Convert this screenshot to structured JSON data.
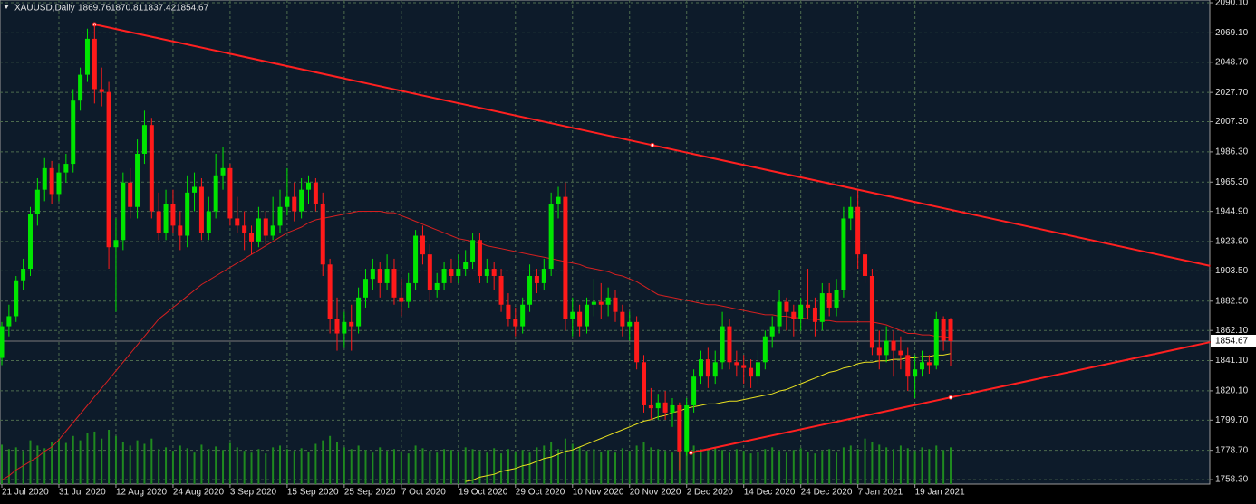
{
  "chart_data": {
    "type": "candlestick",
    "symbol": "XAUUSD,Daily",
    "up_color": "#00e600",
    "down_color": "#ff1a1a",
    "volume_color": "#1f8a1f",
    "grid": true,
    "ylim": [
      1755.2,
      2092.0
    ],
    "yticks": [
      {
        "value": 2090.1,
        "label": "2090.10"
      },
      {
        "value": 2069.1,
        "label": "2069.10"
      },
      {
        "value": 2048.7,
        "label": "2048.70"
      },
      {
        "value": 2027.7,
        "label": "2027.70"
      },
      {
        "value": 2007.3,
        "label": "2007.30"
      },
      {
        "value": 1986.3,
        "label": "1986.30"
      },
      {
        "value": 1965.3,
        "label": "1965.30"
      },
      {
        "value": 1944.9,
        "label": "1944.90"
      },
      {
        "value": 1923.9,
        "label": "1923.90"
      },
      {
        "value": 1903.5,
        "label": "1903.50"
      },
      {
        "value": 1882.5,
        "label": "1882.50"
      },
      {
        "value": 1862.1,
        "label": "1862.10"
      },
      {
        "value": 1841.1,
        "label": "1841.10"
      },
      {
        "value": 1820.1,
        "label": "1820.10"
      },
      {
        "value": 1799.7,
        "label": "1799.70"
      },
      {
        "value": 1778.7,
        "label": "1778.70"
      },
      {
        "value": 1758.3,
        "label": "1758.30"
      }
    ],
    "categories": [
      "21 Jul 2020",
      null,
      null,
      null,
      null,
      null,
      null,
      null,
      "31 Jul 2020",
      null,
      null,
      null,
      null,
      null,
      null,
      null,
      "12 Aug 2020",
      null,
      null,
      null,
      null,
      null,
      null,
      null,
      "24 Aug 2020",
      null,
      null,
      null,
      null,
      null,
      null,
      null,
      "3 Sep 2020",
      null,
      null,
      null,
      null,
      null,
      null,
      null,
      "15 Sep 2020",
      null,
      null,
      null,
      null,
      null,
      null,
      null,
      "25 Sep 2020",
      null,
      null,
      null,
      null,
      null,
      null,
      null,
      "7 Oct 2020",
      null,
      null,
      null,
      null,
      null,
      null,
      null,
      "19 Oct 2020",
      null,
      null,
      null,
      null,
      null,
      null,
      null,
      "29 Oct 2020",
      null,
      null,
      null,
      null,
      null,
      null,
      null,
      "10 Nov 2020",
      null,
      null,
      null,
      null,
      null,
      null,
      null,
      "20 Nov 2020",
      null,
      null,
      null,
      null,
      null,
      null,
      null,
      "2 Dec 2020",
      null,
      null,
      null,
      null,
      null,
      null,
      null,
      "14 Dec 2020",
      null,
      null,
      null,
      null,
      null,
      null,
      null,
      "24 Dec 2020",
      null,
      null,
      null,
      null,
      null,
      null,
      null,
      "7 Jan 2021",
      null,
      null,
      null,
      null,
      null,
      null,
      null,
      "19 Jan 2021",
      null,
      null,
      null,
      null,
      null
    ],
    "candles": [
      [
        1843,
        1868,
        1838,
        1865
      ],
      [
        1865,
        1880,
        1858,
        1872
      ],
      [
        1872,
        1900,
        1868,
        1897
      ],
      [
        1897,
        1912,
        1890,
        1905
      ],
      [
        1905,
        1948,
        1900,
        1943
      ],
      [
        1943,
        1968,
        1935,
        1960
      ],
      [
        1960,
        1982,
        1952,
        1975
      ],
      [
        1975,
        1980,
        1950,
        1957
      ],
      [
        1957,
        1978,
        1952,
        1972
      ],
      [
        1972,
        1985,
        1965,
        1978
      ],
      [
        1978,
        2030,
        1972,
        2022
      ],
      [
        2022,
        2045,
        2015,
        2040
      ],
      [
        2040,
        2072,
        2035,
        2065
      ],
      [
        2065,
        2075,
        2020,
        2030
      ],
      [
        2030,
        2045,
        2018,
        2028
      ],
      [
        2028,
        2035,
        1905,
        1920
      ],
      [
        1920,
        1940,
        1875,
        1925
      ],
      [
        1925,
        1972,
        1918,
        1965
      ],
      [
        1965,
        1975,
        1940,
        1948
      ],
      [
        1948,
        1995,
        1940,
        1985
      ],
      [
        1985,
        2015,
        1978,
        2005
      ],
      [
        2005,
        2010,
        1940,
        1945
      ],
      [
        1945,
        1958,
        1925,
        1930
      ],
      [
        1930,
        1960,
        1925,
        1950
      ],
      [
        1950,
        1960,
        1930,
        1935
      ],
      [
        1935,
        1945,
        1918,
        1928
      ],
      [
        1928,
        1970,
        1920,
        1958
      ],
      [
        1958,
        1972,
        1945,
        1962
      ],
      [
        1962,
        1968,
        1925,
        1930
      ],
      [
        1930,
        1955,
        1925,
        1945
      ],
      [
        1945,
        1985,
        1940,
        1970
      ],
      [
        1970,
        1990,
        1960,
        1975
      ],
      [
        1975,
        1978,
        1935,
        1940
      ],
      [
        1940,
        1955,
        1930,
        1935
      ],
      [
        1935,
        1945,
        1918,
        1930
      ],
      [
        1930,
        1935,
        1915,
        1924
      ],
      [
        1924,
        1948,
        1920,
        1940
      ],
      [
        1940,
        1945,
        1922,
        1928
      ],
      [
        1928,
        1955,
        1925,
        1935
      ],
      [
        1935,
        1960,
        1930,
        1948
      ],
      [
        1948,
        1975,
        1942,
        1955
      ],
      [
        1955,
        1965,
        1938,
        1945
      ],
      [
        1945,
        1968,
        1940,
        1960
      ],
      [
        1960,
        1970,
        1950,
        1965
      ],
      [
        1965,
        1968,
        1945,
        1950
      ],
      [
        1950,
        1958,
        1900,
        1908
      ],
      [
        1908,
        1912,
        1860,
        1870
      ],
      [
        1870,
        1885,
        1848,
        1860
      ],
      [
        1860,
        1875,
        1850,
        1868
      ],
      [
        1868,
        1880,
        1848,
        1865
      ],
      [
        1865,
        1892,
        1860,
        1885
      ],
      [
        1885,
        1905,
        1878,
        1898
      ],
      [
        1898,
        1912,
        1890,
        1905
      ],
      [
        1905,
        1910,
        1885,
        1895
      ],
      [
        1895,
        1915,
        1890,
        1905
      ],
      [
        1905,
        1912,
        1880,
        1885
      ],
      [
        1885,
        1898,
        1872,
        1882
      ],
      [
        1882,
        1902,
        1878,
        1895
      ],
      [
        1895,
        1932,
        1890,
        1928
      ],
      [
        1928,
        1935,
        1908,
        1915
      ],
      [
        1915,
        1922,
        1882,
        1890
      ],
      [
        1890,
        1902,
        1885,
        1895
      ],
      [
        1895,
        1910,
        1890,
        1905
      ],
      [
        1905,
        1912,
        1895,
        1900
      ],
      [
        1900,
        1915,
        1895,
        1905
      ],
      [
        1905,
        1918,
        1900,
        1910
      ],
      [
        1910,
        1930,
        1905,
        1925
      ],
      [
        1925,
        1930,
        1895,
        1900
      ],
      [
        1900,
        1912,
        1895,
        1905
      ],
      [
        1905,
        1910,
        1890,
        1900
      ],
      [
        1900,
        1905,
        1875,
        1880
      ],
      [
        1880,
        1888,
        1865,
        1870
      ],
      [
        1870,
        1878,
        1858,
        1865
      ],
      [
        1865,
        1885,
        1860,
        1880
      ],
      [
        1880,
        1908,
        1875,
        1900
      ],
      [
        1900,
        1905,
        1888,
        1895
      ],
      [
        1895,
        1912,
        1890,
        1905
      ],
      [
        1905,
        1958,
        1900,
        1950
      ],
      [
        1950,
        1962,
        1940,
        1955
      ],
      [
        1955,
        1965,
        1862,
        1870
      ],
      [
        1870,
        1885,
        1858,
        1875
      ],
      [
        1875,
        1880,
        1858,
        1865
      ],
      [
        1865,
        1885,
        1860,
        1880
      ],
      [
        1880,
        1898,
        1872,
        1882
      ],
      [
        1882,
        1895,
        1870,
        1880
      ],
      [
        1880,
        1892,
        1872,
        1885
      ],
      [
        1885,
        1890,
        1868,
        1875
      ],
      [
        1875,
        1880,
        1858,
        1865
      ],
      [
        1865,
        1875,
        1855,
        1868
      ],
      [
        1868,
        1872,
        1835,
        1840
      ],
      [
        1840,
        1845,
        1805,
        1810
      ],
      [
        1810,
        1822,
        1800,
        1808
      ],
      [
        1808,
        1818,
        1800,
        1812
      ],
      [
        1812,
        1820,
        1800,
        1805
      ],
      [
        1805,
        1815,
        1795,
        1810
      ],
      [
        1810,
        1812,
        1765,
        1778
      ],
      [
        1778,
        1815,
        1775,
        1810
      ],
      [
        1810,
        1835,
        1805,
        1830
      ],
      [
        1830,
        1848,
        1825,
        1842
      ],
      [
        1842,
        1850,
        1822,
        1830
      ],
      [
        1830,
        1848,
        1825,
        1840
      ],
      [
        1840,
        1875,
        1835,
        1865
      ],
      [
        1865,
        1870,
        1835,
        1840
      ],
      [
        1840,
        1848,
        1830,
        1838
      ],
      [
        1838,
        1845,
        1825,
        1836
      ],
      [
        1836,
        1842,
        1822,
        1830
      ],
      [
        1830,
        1848,
        1825,
        1840
      ],
      [
        1840,
        1862,
        1835,
        1858
      ],
      [
        1858,
        1872,
        1850,
        1865
      ],
      [
        1865,
        1890,
        1860,
        1882
      ],
      [
        1882,
        1885,
        1862,
        1875
      ],
      [
        1875,
        1880,
        1858,
        1870
      ],
      [
        1870,
        1885,
        1862,
        1880
      ],
      [
        1880,
        1905,
        1870,
        1878
      ],
      [
        1878,
        1885,
        1858,
        1868
      ],
      [
        1868,
        1895,
        1862,
        1888
      ],
      [
        1888,
        1895,
        1872,
        1878
      ],
      [
        1878,
        1898,
        1872,
        1890
      ],
      [
        1890,
        1948,
        1885,
        1940
      ],
      [
        1940,
        1955,
        1932,
        1948
      ],
      [
        1948,
        1960,
        1905,
        1915
      ],
      [
        1915,
        1925,
        1895,
        1900
      ],
      [
        1900,
        1905,
        1845,
        1850
      ],
      [
        1850,
        1862,
        1835,
        1845
      ],
      [
        1845,
        1865,
        1840,
        1855
      ],
      [
        1855,
        1862,
        1830,
        1848
      ],
      [
        1848,
        1858,
        1835,
        1845
      ],
      [
        1845,
        1850,
        1820,
        1830
      ],
      [
        1830,
        1845,
        1815,
        1835
      ],
      [
        1835,
        1848,
        1830,
        1840
      ],
      [
        1840,
        1845,
        1832,
        1838
      ],
      [
        1838,
        1875,
        1835,
        1870
      ],
      [
        1870,
        1872,
        1848,
        1855
      ],
      [
        1869.76,
        1870.81,
        1837.42,
        1854.67
      ]
    ],
    "volume": [
      45,
      40,
      42,
      38,
      50,
      44,
      41,
      48,
      52,
      47,
      55,
      50,
      58,
      60,
      52,
      62,
      55,
      48,
      44,
      50,
      46,
      52,
      40,
      42,
      38,
      44,
      41,
      36,
      45,
      40,
      43,
      39,
      47,
      42,
      38,
      36,
      40,
      35,
      42,
      44,
      40,
      38,
      41,
      37,
      46,
      50,
      55,
      48,
      42,
      40,
      44,
      39,
      36,
      42,
      38,
      40,
      37,
      35,
      44,
      41,
      38,
      36,
      40,
      39,
      37,
      42,
      40,
      38,
      36,
      41,
      35,
      40,
      37,
      39,
      36,
      42,
      44,
      48,
      40,
      52,
      46,
      42,
      38,
      40,
      37,
      39,
      36,
      41,
      38,
      44,
      48,
      42,
      40,
      38,
      36,
      50,
      46,
      44,
      40,
      38,
      42,
      39,
      36,
      40,
      38,
      35,
      37,
      40,
      42,
      38,
      36,
      39,
      41,
      37,
      35,
      38,
      40,
      36,
      42,
      44,
      40,
      52,
      48,
      45,
      42,
      40,
      44,
      41,
      38,
      42,
      40,
      44,
      39,
      42
    ],
    "ma_fast": {
      "color": "#d42020",
      "values": [
        1758,
        1761,
        1765,
        1768,
        1771,
        1774,
        1778,
        1781,
        1786,
        1792,
        1798,
        1804,
        1810,
        1816,
        1822,
        1828,
        1834,
        1840,
        1846,
        1852,
        1858,
        1864,
        1870,
        1874,
        1878,
        1882,
        1886,
        1890,
        1894,
        1897,
        1900,
        1903,
        1906,
        1909,
        1912,
        1915,
        1918,
        1921,
        1924,
        1927,
        1930,
        1932,
        1934,
        1937,
        1939,
        1940,
        1941,
        1942,
        1943,
        1944,
        1945,
        1945,
        1945,
        1945,
        1944,
        1944,
        1942,
        1940,
        1938,
        1936,
        1934,
        1932,
        1930,
        1928,
        1926,
        1925,
        1924,
        1923,
        1921,
        1920,
        1919,
        1918,
        1917,
        1916,
        1915,
        1914,
        1913,
        1912,
        1911,
        1910,
        1909,
        1908,
        1906,
        1905,
        1904,
        1903,
        1901,
        1900,
        1898,
        1896,
        1893,
        1890,
        1887,
        1886,
        1885,
        1884,
        1883,
        1882,
        1881,
        1880,
        1880,
        1879,
        1878,
        1877,
        1876,
        1875,
        1874,
        1873,
        1873,
        1872,
        1872,
        1871,
        1871,
        1870,
        1870,
        1869,
        1869,
        1868,
        1868,
        1868,
        1868,
        1868,
        1868,
        1867,
        1866,
        1864,
        1862,
        1860,
        1860,
        1859,
        1859,
        1858,
        1858,
        1857
      ]
    },
    "ma_slow": {
      "color": "#e8e020",
      "values": [
        null,
        null,
        null,
        null,
        null,
        null,
        null,
        null,
        null,
        null,
        null,
        null,
        null,
        null,
        null,
        null,
        null,
        null,
        null,
        null,
        null,
        null,
        null,
        null,
        null,
        null,
        null,
        null,
        null,
        null,
        null,
        null,
        null,
        null,
        null,
        null,
        null,
        null,
        null,
        null,
        null,
        null,
        null,
        null,
        null,
        null,
        null,
        null,
        null,
        null,
        null,
        null,
        null,
        null,
        null,
        null,
        null,
        null,
        null,
        null,
        null,
        null,
        null,
        null,
        null,
        1757,
        1758,
        1760,
        1761,
        1762,
        1764,
        1765,
        1766,
        1768,
        1769,
        1771,
        1773,
        1774,
        1776,
        1778,
        1779,
        1781,
        1783,
        1785,
        1787,
        1789,
        1791,
        1793,
        1795,
        1797,
        1799,
        1800,
        1802,
        1803,
        1805,
        1806,
        1808,
        1809,
        1810,
        1811,
        1811,
        1812,
        1813,
        1813,
        1814,
        1815,
        1816,
        1817,
        1818,
        1820,
        1821,
        1823,
        1825,
        1827,
        1829,
        1831,
        1833,
        1834,
        1836,
        1837,
        1839,
        1840,
        1840,
        1841,
        1841,
        1842,
        1842,
        1843,
        1843,
        1844,
        1844,
        1845,
        1845,
        1846
      ]
    },
    "trendlines": [
      {
        "color": "#ff2020",
        "x": [
          13,
          169.4
        ],
        "values": [
          2075,
          1907
        ]
      },
      {
        "color": "#ff2020",
        "x": [
          96.6,
          169.4
        ],
        "values": [
          1777,
          1854
        ]
      }
    ]
  }
}
